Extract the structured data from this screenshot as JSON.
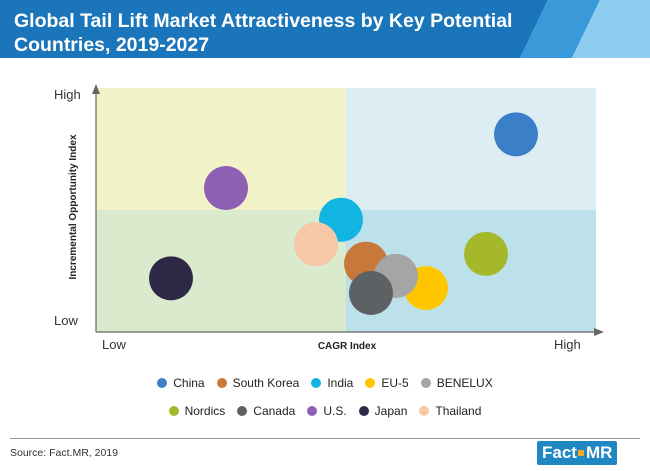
{
  "header": {
    "title": "Global Tail Lift Market Attractiveness by Key Potential Countries, 2019-2027",
    "colors": {
      "band_dark": "#1b75bb",
      "band_mid": "#3a9ad9",
      "band_light": "#8fcdf0"
    }
  },
  "chart_data": {
    "type": "scatter",
    "title": "Global Tail Lift Market Attractiveness by Key Potential Countries, 2019-2027",
    "xlabel": "CAGR Index",
    "ylabel": "Incremental Opportunity Index",
    "x_tick_labels": [
      "Low",
      "High"
    ],
    "y_tick_labels": [
      "Low",
      "High"
    ],
    "xlim": [
      0,
      100
    ],
    "ylim": [
      0,
      100
    ],
    "grid": false,
    "quadrants": {
      "split_x": 50,
      "split_y": 50,
      "colors": {
        "top_left": "#f1f2c8",
        "top_right": "#dcedf3",
        "bottom_left": "#d9eacd",
        "bottom_right": "#bde1ea"
      }
    },
    "legend_position": "bottom",
    "series": [
      {
        "name": "China",
        "color": "#3b7fc8",
        "x": 84,
        "y": 81
      },
      {
        "name": "South Korea",
        "color": "#c9783b",
        "x": 54,
        "y": 28
      },
      {
        "name": "India",
        "color": "#12b4e2",
        "x": 49,
        "y": 46
      },
      {
        "name": "EU-5",
        "color": "#ffc600",
        "x": 66,
        "y": 18
      },
      {
        "name": "BENELUX",
        "color": "#a5a5a5",
        "x": 60,
        "y": 23
      },
      {
        "name": "Nordics",
        "color": "#a5b82c",
        "x": 78,
        "y": 32
      },
      {
        "name": "Canada",
        "color": "#5e6163",
        "x": 55,
        "y": 16
      },
      {
        "name": "U.S.",
        "color": "#8e5fb5",
        "x": 26,
        "y": 59
      },
      {
        "name": "Japan",
        "color": "#2d2846",
        "x": 15,
        "y": 22
      },
      {
        "name": "Thailand",
        "color": "#f6c8a8",
        "x": 44,
        "y": 36
      }
    ]
  },
  "legend_rows": [
    [
      "China",
      "South Korea",
      "India",
      "EU-5",
      "BENELUX"
    ],
    [
      "Nordics",
      "Canada",
      "U.S.",
      "Japan",
      "Thailand"
    ]
  ],
  "footer": {
    "source": "Source: Fact.MR, 2019",
    "logo_left": "Fact",
    "logo_right": "MR"
  }
}
